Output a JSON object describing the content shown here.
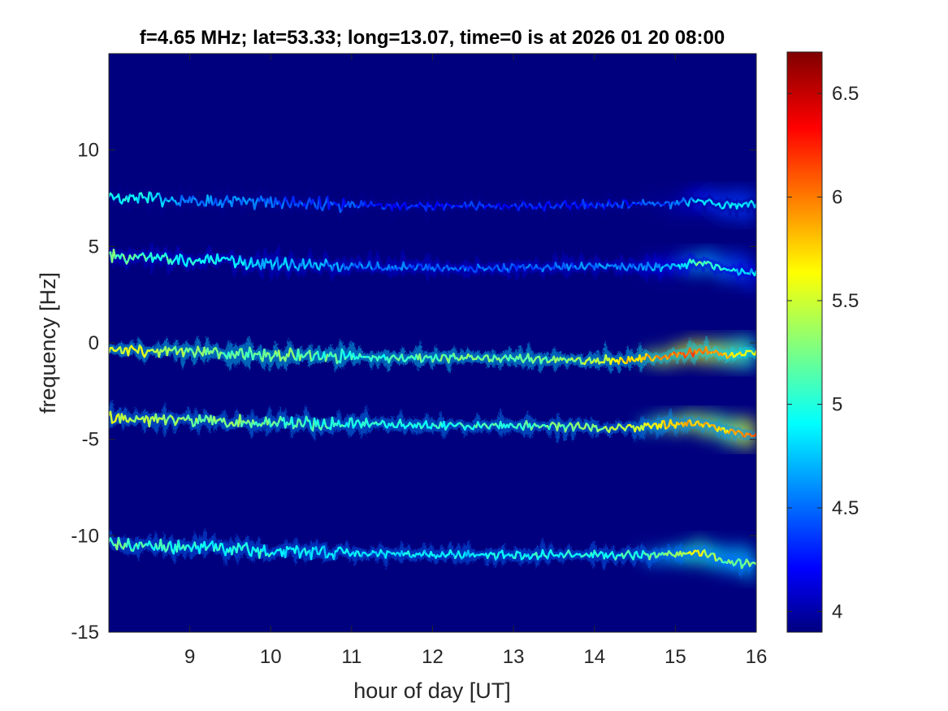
{
  "chart_data": {
    "type": "heatmap",
    "title": "f=4.65 MHz;  lat=53.33; long=13.07, time=0 is at 2026 01 20 08:00",
    "xlabel": "hour of day [UT]",
    "ylabel": "frequency [Hz]",
    "xlim": [
      8,
      16
    ],
    "ylim": [
      -15,
      15
    ],
    "xticks": [
      9,
      10,
      11,
      12,
      13,
      14,
      15,
      16
    ],
    "yticks": [
      -15,
      -10,
      -5,
      0,
      5,
      10
    ],
    "colormap": "jet",
    "background_color": "#00007f",
    "colorbar": {
      "range": [
        3.9,
        6.7
      ],
      "ticks": [
        4,
        4.5,
        5,
        5.5,
        6,
        6.5
      ],
      "tick_labels": [
        "4",
        "4.5",
        "5",
        "5.5",
        "6",
        "6.5"
      ]
    },
    "traces": [
      {
        "name": "",
        "x": [
          8.0,
          8.5,
          9.0,
          9.5,
          10.0,
          10.5,
          11.0,
          11.5,
          12.0,
          12.5,
          13.0,
          13.5,
          14.0,
          14.5,
          15.0,
          15.3,
          15.6,
          16.0
        ],
        "y": [
          7.6,
          7.5,
          7.4,
          7.3,
          7.3,
          7.2,
          7.2,
          7.1,
          7.1,
          7.1,
          7.1,
          7.1,
          7.2,
          7.2,
          7.2,
          7.4,
          7.1,
          7.2
        ],
        "level": [
          5.0,
          4.9,
          4.6,
          4.6,
          4.5,
          4.4,
          4.4,
          4.3,
          4.3,
          4.3,
          4.3,
          4.3,
          4.3,
          4.4,
          4.5,
          4.8,
          4.9,
          4.9
        ]
      },
      {
        "name": "",
        "x": [
          8.0,
          8.5,
          9.0,
          9.5,
          10.0,
          10.5,
          11.0,
          11.5,
          12.0,
          12.5,
          13.0,
          13.5,
          14.0,
          14.5,
          15.0,
          15.3,
          15.6,
          16.0
        ],
        "y": [
          4.5,
          4.4,
          4.3,
          4.2,
          4.1,
          4.0,
          4.0,
          3.9,
          3.9,
          3.9,
          3.9,
          3.9,
          4.0,
          3.9,
          4.0,
          4.2,
          3.8,
          3.6
        ],
        "level": [
          5.2,
          5.1,
          5.0,
          4.9,
          4.8,
          4.7,
          4.6,
          4.5,
          4.5,
          4.5,
          4.5,
          4.5,
          4.6,
          4.6,
          4.8,
          5.2,
          5.0,
          4.8
        ]
      },
      {
        "name": "",
        "x": [
          8.0,
          8.5,
          9.0,
          9.5,
          10.0,
          10.5,
          11.0,
          11.5,
          12.0,
          12.5,
          13.0,
          13.5,
          14.0,
          14.5,
          15.0,
          15.3,
          15.6,
          16.0
        ],
        "y": [
          -0.4,
          -0.4,
          -0.5,
          -0.6,
          -0.6,
          -0.7,
          -0.7,
          -0.8,
          -0.8,
          -0.8,
          -0.8,
          -0.9,
          -0.9,
          -0.9,
          -0.6,
          -0.4,
          -0.6,
          -0.5
        ],
        "level": [
          5.6,
          5.5,
          5.3,
          5.2,
          5.3,
          5.2,
          5.1,
          5.1,
          5.2,
          5.3,
          5.2,
          5.3,
          5.4,
          5.8,
          6.0,
          6.1,
          5.8,
          5.5
        ]
      },
      {
        "name": "",
        "x": [
          8.0,
          8.5,
          9.0,
          9.5,
          10.0,
          10.5,
          11.0,
          11.5,
          12.0,
          12.5,
          13.0,
          13.5,
          14.0,
          14.5,
          15.0,
          15.3,
          15.6,
          16.0
        ],
        "y": [
          -3.9,
          -4.0,
          -4.0,
          -4.1,
          -4.1,
          -4.2,
          -4.2,
          -4.2,
          -4.3,
          -4.3,
          -4.3,
          -4.3,
          -4.4,
          -4.4,
          -4.2,
          -4.2,
          -4.5,
          -4.9
        ],
        "level": [
          5.6,
          5.4,
          5.3,
          5.3,
          5.2,
          5.1,
          5.0,
          5.0,
          5.0,
          5.1,
          5.1,
          5.2,
          5.3,
          5.5,
          5.8,
          5.9,
          5.7,
          6.1
        ]
      },
      {
        "name": "",
        "x": [
          8.0,
          8.5,
          9.0,
          9.5,
          10.0,
          10.5,
          11.0,
          11.5,
          12.0,
          12.5,
          13.0,
          13.5,
          14.0,
          14.5,
          15.0,
          15.3,
          15.6,
          16.0
        ],
        "y": [
          -10.4,
          -10.5,
          -10.6,
          -10.7,
          -10.8,
          -10.9,
          -10.9,
          -10.9,
          -11.0,
          -11.0,
          -11.0,
          -11.0,
          -11.0,
          -11.0,
          -11.0,
          -10.8,
          -11.3,
          -11.5
        ],
        "level": [
          5.2,
          5.1,
          5.0,
          5.0,
          5.0,
          4.9,
          4.9,
          4.9,
          4.9,
          4.9,
          5.0,
          5.0,
          5.0,
          5.1,
          5.3,
          5.6,
          5.2,
          5.3
        ]
      }
    ]
  }
}
